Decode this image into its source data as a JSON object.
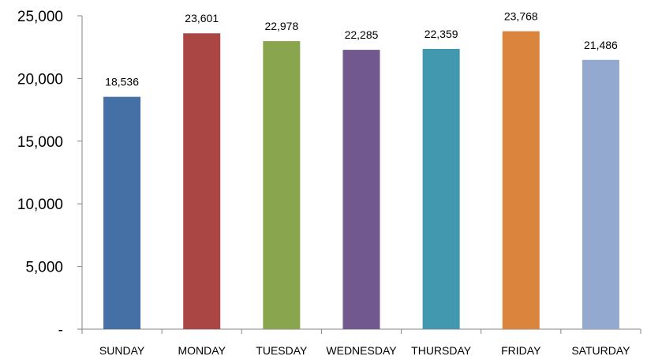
{
  "chart_data": {
    "type": "bar",
    "title": "",
    "xlabel": "",
    "ylabel": "",
    "categories": [
      "SUNDAY",
      "MONDAY",
      "TUESDAY",
      "WEDNESDAY",
      "THURSDAY",
      "FRIDAY",
      "SATURDAY"
    ],
    "values": [
      18536,
      23601,
      22978,
      22285,
      22359,
      23768,
      21486
    ],
    "value_labels": [
      "18,536",
      "23,601",
      "22,978",
      "22,285",
      "22,359",
      "23,768",
      "21,486"
    ],
    "colors": [
      "#4570A6",
      "#AA4744",
      "#89A54E",
      "#71588F",
      "#4198AF",
      "#DB843D",
      "#93A9CF"
    ],
    "ylim": [
      0,
      25000
    ],
    "yticks": [
      0,
      5000,
      10000,
      15000,
      20000,
      25000
    ],
    "ytick_labels": [
      "-",
      "5,000",
      "10,000",
      "15,000",
      "20,000",
      "25,000"
    ],
    "grid": false,
    "legend": "none"
  }
}
